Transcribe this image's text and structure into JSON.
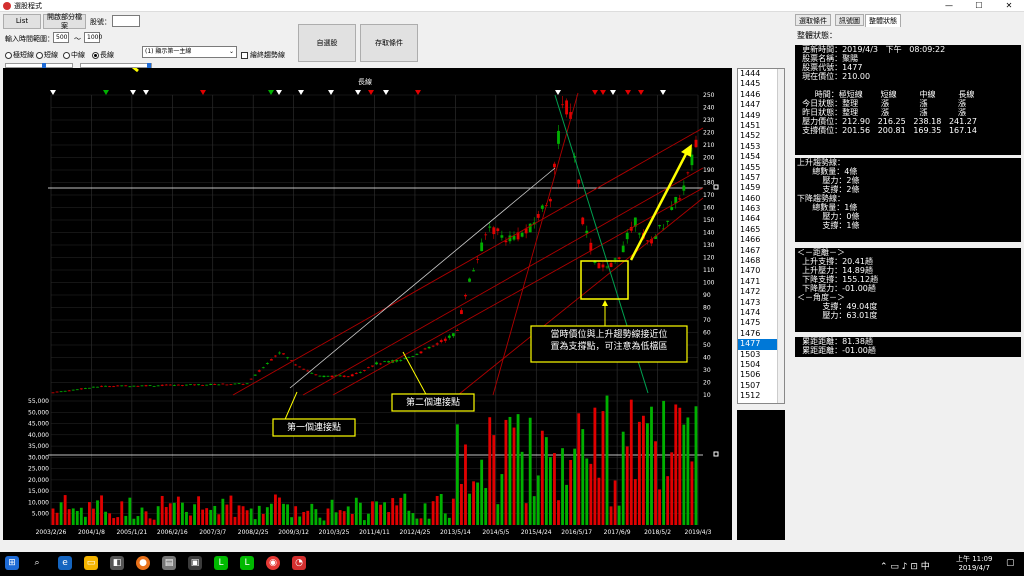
{
  "window": {
    "title": "選股程式",
    "minimize": "—",
    "maximize": "☐",
    "close": "✕"
  },
  "controls": {
    "list_button": "List",
    "partial_button": "開啟部分檔案",
    "stock_no_label": "股號：",
    "stock_no_value": "",
    "period_label": "輸入時間範圍：",
    "period_from": "500",
    "period_sep": "～",
    "period_to": "1000",
    "radios": [
      {
        "label": "極短線",
        "on": false
      },
      {
        "label": "短線",
        "on": false
      },
      {
        "label": "中線",
        "on": false
      },
      {
        "label": "長線",
        "on": true
      }
    ],
    "select_value": "(1) 顯示第一主線",
    "checkbox_label": "繪終趨勢線",
    "select_stock_button": "自選股",
    "save_button": "存取條件"
  },
  "chart": {
    "title": "長線",
    "price_ticks": [
      "250",
      "240",
      "230",
      "220",
      "210",
      "200",
      "190",
      "180",
      "170",
      "160",
      "150",
      "140",
      "130",
      "120",
      "110",
      "100",
      "90",
      "80",
      "70",
      "60",
      "50",
      "40",
      "30",
      "20",
      "10"
    ],
    "volume_ticks": [
      "55,000",
      "50,000",
      "45,000",
      "40,000",
      "35,000",
      "30,000",
      "25,000",
      "20,000",
      "15,000",
      "10,000",
      "5,000"
    ],
    "dates": [
      "2003/2/26",
      "2004/1/8",
      "2005/1/21",
      "2006/2/16",
      "2007/3/7",
      "2008/2/25",
      "2009/3/12",
      "2010/3/25",
      "2011/4/11",
      "2012/4/25",
      "2013/5/14",
      "2014/5/5",
      "2015/4/24",
      "2016/5/17",
      "2017/6/9",
      "2018/5/2",
      "2019/4/3"
    ],
    "annotations": {
      "first_point": "第一個連接點",
      "second_point": "第二個連接點",
      "note_line1": "當時價位與上升趨勢線接近位",
      "note_line2": "置為支撐點，可注意為低檔區"
    }
  },
  "stock_list": {
    "items": [
      "1444",
      "1445",
      "1446",
      "1447",
      "1449",
      "1451",
      "1452",
      "1453",
      "1454",
      "1455",
      "1457",
      "1459",
      "1460",
      "1463",
      "1464",
      "1465",
      "1466",
      "1467",
      "1468",
      "1470",
      "1471",
      "1472",
      "1473",
      "1474",
      "1475",
      "1476",
      "1477",
      "1503",
      "1504",
      "1506",
      "1507",
      "1512"
    ],
    "selected": "1477"
  },
  "panel": {
    "tabs": [
      "選取條件",
      "訊號圖",
      "整體狀態"
    ],
    "active_tab": "整體狀態",
    "heading": "整體狀態：",
    "box1": [
      "  更新時間：2019/4/3   下午   08:09:22",
      "  股票名稱：聚陽",
      "  股票代號：1477",
      "  現在價位：210.00",
      "",
      "       時間：極短線       短線         中線         長線",
      "  今日狀態：整理         漲            漲            漲",
      "  昨日狀態：整理         漲            漲            漲",
      "  壓力價位：212.90   216.25   238.18   241.27",
      "  支撐價位：201.56   200.81   169.35   167.14"
    ],
    "box2": [
      "上升趨勢線：",
      "      總數量：4條",
      "          壓力：2條",
      "          支撐：2條",
      "下降趨勢線：",
      "      總數量：1條",
      "          壓力：0條",
      "          支撐：1條"
    ],
    "box3": [
      "＜－距離－＞",
      "  上升支撐：20.41趟",
      "  上升壓力：14.89趟",
      "  下降支撐：155.12趟",
      "  下降壓力：-01.00趟",
      "＜－角度－＞",
      "          支撐：49.04度",
      "          壓力：63.01度"
    ],
    "box4": [
      "  累距距離：81.38趟",
      "  累距距離：-01.00趟"
    ]
  },
  "taskbar": {
    "time": "上午 11:09",
    "date": "2019/4/7"
  },
  "colors": {
    "up": "#e00000",
    "down": "#00b000",
    "line_red": "#b00000",
    "line_green": "#00a050",
    "annot": "#ffff00",
    "select": "#0078d7"
  }
}
